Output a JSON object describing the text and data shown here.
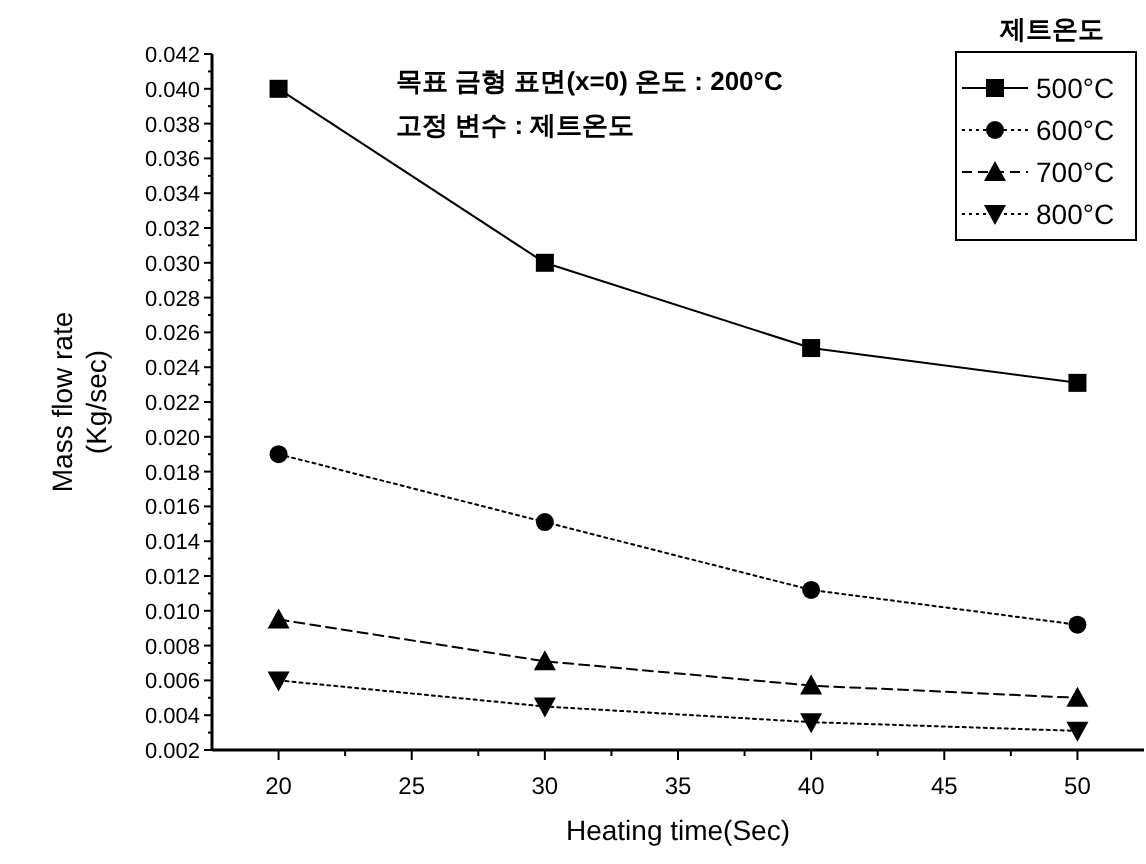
{
  "chart_data": {
    "type": "line",
    "xlabel": "Heating time(Sec)",
    "ylabel": "Mass flow rate\n(Kg/sec)",
    "legend_title": "제트온도",
    "legend": "top right",
    "grid": false,
    "annotations": [
      "목표 금형 표면(x=0) 온도 : 200°C",
      "고정 변수 : 제트온도"
    ],
    "x": [
      20,
      30,
      40,
      50
    ],
    "xlim": [
      17.5,
      52.5
    ],
    "xticks": [
      20,
      25,
      30,
      35,
      40,
      45,
      50
    ],
    "ylim": [
      0.002,
      0.042
    ],
    "yticks": [
      0.002,
      0.004,
      0.006,
      0.008,
      {
        "value": 0.01,
        "label": "0.010"
      },
      0.012,
      0.014,
      0.016,
      0.018,
      {
        "value": 0.02,
        "label": "0.020"
      },
      0.022,
      0.024,
      0.026,
      0.028,
      {
        "value": 0.03,
        "label": "0.030"
      },
      0.032,
      0.034,
      0.036,
      0.038,
      {
        "value": 0.04,
        "label": "0.040"
      },
      0.042
    ],
    "series": [
      {
        "name": "500°C",
        "color": "#000000",
        "marker": "square",
        "line_style": "solid",
        "values": [
          0.04,
          0.03,
          0.0251,
          0.0231
        ]
      },
      {
        "name": "600°C",
        "color": "#000000",
        "marker": "circle",
        "line_style": "dotted",
        "values": [
          0.019,
          0.0151,
          0.0112,
          0.0092
        ]
      },
      {
        "name": "700°C",
        "color": "#000000",
        "marker": "triangle",
        "line_style": "dashed",
        "values": [
          0.0095,
          0.0071,
          0.0057,
          0.005
        ]
      },
      {
        "name": "800°C",
        "color": "#000000",
        "marker": "triangle-down",
        "line_style": "dotted",
        "values": [
          0.006,
          0.0045,
          0.0036,
          0.0031
        ]
      }
    ]
  }
}
